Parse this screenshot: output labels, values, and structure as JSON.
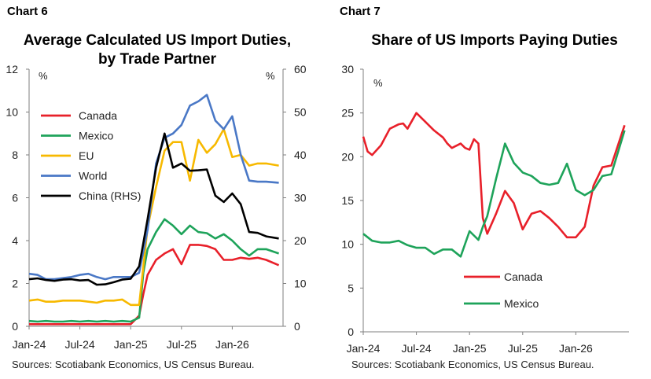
{
  "left": {
    "label": "Chart 6",
    "title_line1": "Average Calculated US Import Duties,",
    "title_line2": "by Trade Partner",
    "source": "Sources: Scotiabank Economics, US Census Bureau."
  },
  "right": {
    "label": "Chart 7",
    "title": "Share of US Imports Paying Duties",
    "source": "Sources: Scotiabank Economics, US Census Bureau."
  },
  "chart_data": [
    {
      "type": "line",
      "title": "Average Calculated US Import Duties, by Trade Partner",
      "y_unit_left": "%",
      "y_unit_right": "%",
      "ylim_left": [
        0,
        12
      ],
      "ylim_right": [
        0,
        60
      ],
      "yticks_left": [
        "0",
        "2",
        "4",
        "6",
        "8",
        "10",
        "12"
      ],
      "yticks_right": [
        "0",
        "10",
        "20",
        "30",
        "40",
        "50",
        "60"
      ],
      "xticks": [
        "Jan-24",
        "Jul-24",
        "Jan-25",
        "Jul-25",
        "Jan-26"
      ],
      "xtick_months": [
        0,
        6,
        12,
        18,
        24
      ],
      "xlim_months": [
        0,
        30
      ],
      "legend_position": "left",
      "series": [
        {
          "name": "Canada",
          "color": "#e8202a",
          "axis": "left",
          "x": [
            0,
            1,
            2,
            3,
            4,
            5,
            6,
            7,
            8,
            9,
            10,
            11,
            12,
            13,
            13.5,
            14,
            15,
            16,
            17,
            18,
            19,
            20,
            21,
            22,
            23,
            24,
            25,
            26,
            27,
            28,
            29.5
          ],
          "y": [
            0.1,
            0.1,
            0.1,
            0.1,
            0.1,
            0.1,
            0.1,
            0.1,
            0.1,
            0.1,
            0.1,
            0.1,
            0.1,
            0.5,
            1.5,
            2.4,
            3.1,
            3.4,
            3.6,
            2.9,
            3.8,
            3.8,
            3.75,
            3.6,
            3.1,
            3.1,
            3.2,
            3.15,
            3.2,
            3.1,
            2.85
          ]
        },
        {
          "name": "Mexico",
          "color": "#1ea35a",
          "axis": "left",
          "x": [
            0,
            1,
            2,
            3,
            4,
            5,
            6,
            7,
            8,
            9,
            10,
            11,
            12,
            13,
            13.5,
            14,
            15,
            16,
            17,
            18,
            19,
            20,
            21,
            22,
            23,
            24,
            25,
            26,
            27,
            28,
            29.5
          ],
          "y": [
            0.25,
            0.22,
            0.25,
            0.22,
            0.22,
            0.25,
            0.22,
            0.25,
            0.22,
            0.25,
            0.22,
            0.25,
            0.22,
            0.4,
            2.5,
            3.6,
            4.4,
            5.0,
            4.7,
            4.3,
            4.7,
            4.4,
            4.35,
            4.1,
            4.3,
            4.0,
            3.6,
            3.3,
            3.6,
            3.6,
            3.4
          ]
        },
        {
          "name": "EU",
          "color": "#f7b900",
          "axis": "left",
          "x": [
            0,
            1,
            2,
            3,
            4,
            5,
            6,
            7,
            8,
            9,
            10,
            11,
            12,
            13,
            14,
            15,
            16,
            17,
            18,
            19,
            20,
            21,
            22,
            23,
            24,
            25,
            26,
            27,
            28,
            29.5
          ],
          "y": [
            1.2,
            1.25,
            1.15,
            1.15,
            1.2,
            1.2,
            1.2,
            1.15,
            1.1,
            1.2,
            1.2,
            1.25,
            1.0,
            1.0,
            4.6,
            6.5,
            8.2,
            8.6,
            8.6,
            6.8,
            8.7,
            8.1,
            8.5,
            9.2,
            7.9,
            8.0,
            7.5,
            7.6,
            7.6,
            7.5
          ]
        },
        {
          "name": "World",
          "color": "#4a78c6",
          "axis": "left",
          "x": [
            0,
            1,
            2,
            3,
            4,
            5,
            6,
            7,
            8,
            9,
            10,
            11,
            12,
            13,
            14,
            15,
            16,
            17,
            18,
            19,
            20,
            21,
            22,
            23,
            24,
            25,
            26,
            27,
            28,
            29.5
          ],
          "y": [
            2.45,
            2.4,
            2.2,
            2.2,
            2.25,
            2.3,
            2.4,
            2.45,
            2.3,
            2.2,
            2.3,
            2.3,
            2.3,
            2.5,
            4.5,
            7.6,
            8.8,
            9.0,
            9.4,
            10.3,
            10.5,
            10.8,
            9.6,
            9.2,
            9.8,
            8.0,
            6.8,
            6.75,
            6.75,
            6.7
          ]
        },
        {
          "name": "China (RHS)",
          "color": "#000000",
          "axis": "right",
          "x": [
            0,
            1,
            2,
            3,
            4,
            5,
            6,
            7,
            8,
            9,
            10,
            11,
            12,
            13,
            14,
            15,
            16,
            17,
            18,
            19,
            20,
            21,
            22,
            23,
            24,
            25,
            26,
            27,
            28,
            29.5
          ],
          "y": [
            11,
            11.2,
            10.8,
            10.6,
            10.9,
            11,
            10.7,
            10.8,
            9.7,
            9.8,
            10.3,
            10.9,
            11.1,
            14,
            25,
            37,
            45,
            37,
            38,
            36.3,
            36.4,
            36.6,
            30.5,
            29,
            31,
            28.5,
            22,
            21.8,
            21,
            20.5
          ]
        }
      ]
    },
    {
      "type": "line",
      "title": "Share of US Imports Paying Duties",
      "y_unit_left": "%",
      "ylim": [
        0,
        30
      ],
      "yticks": [
        "0",
        "5",
        "10",
        "15",
        "20",
        "25",
        "30"
      ],
      "xticks": [
        "Jan-24",
        "Jul-24",
        "Jan-25",
        "Jul-25",
        "Jan-26"
      ],
      "xtick_months": [
        0,
        6,
        12,
        18,
        24
      ],
      "xlim_months": [
        0,
        30
      ],
      "legend_position": "lower-middle",
      "series": [
        {
          "name": "Canada",
          "color": "#e8202a",
          "x": [
            0,
            0.5,
            1,
            2,
            3,
            4,
            4.5,
            5,
            6,
            7,
            8,
            9,
            9.5,
            10,
            11,
            11.5,
            12,
            12.5,
            13,
            13.5,
            14,
            15,
            16,
            17,
            18,
            19,
            20,
            21,
            22,
            23,
            24,
            25,
            26,
            27,
            28,
            29.5
          ],
          "y": [
            22.3,
            20.6,
            20.2,
            21.3,
            23.2,
            23.7,
            23.8,
            23.2,
            25.0,
            24.0,
            23.0,
            22.2,
            21.5,
            21.0,
            21.5,
            21.0,
            20.8,
            22.0,
            21.5,
            13.0,
            11.2,
            13.5,
            16.1,
            14.7,
            11.7,
            13.5,
            13.8,
            13.0,
            12.0,
            10.8,
            10.8,
            12.0,
            16.7,
            18.8,
            19.0,
            23.6
          ]
        },
        {
          "name": "Mexico",
          "color": "#1ea35a",
          "x": [
            0,
            1,
            2,
            3,
            4,
            5,
            6,
            7,
            8,
            9,
            10,
            11,
            12,
            12.5,
            13,
            13.5,
            14,
            15,
            16,
            17,
            18,
            19,
            20,
            21,
            22,
            23,
            24,
            25,
            26,
            27,
            28,
            29.5
          ],
          "y": [
            11.2,
            10.4,
            10.2,
            10.2,
            10.4,
            9.9,
            9.6,
            9.6,
            8.9,
            9.4,
            9.4,
            8.6,
            11.5,
            11.0,
            10.5,
            12.0,
            13.2,
            17.5,
            21.5,
            19.3,
            18.2,
            17.8,
            17.0,
            16.8,
            17.0,
            19.2,
            16.2,
            15.6,
            16.2,
            17.8,
            18.0,
            23.0
          ]
        }
      ]
    }
  ]
}
